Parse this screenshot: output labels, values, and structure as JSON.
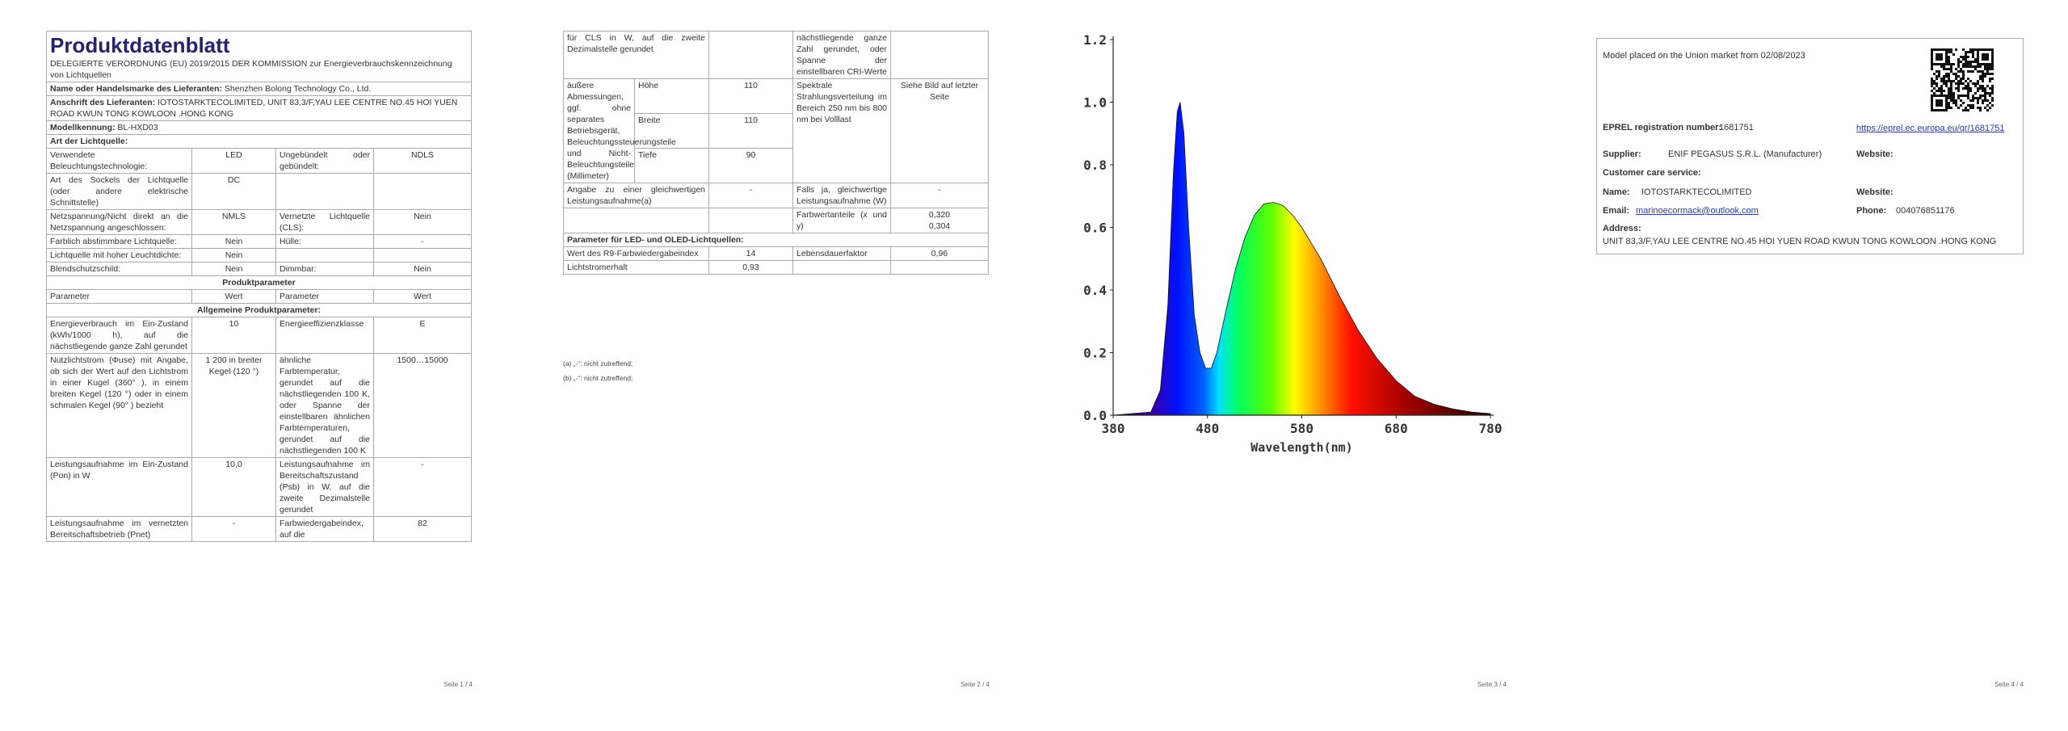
{
  "pages": [
    {
      "title": "Produktdatenblatt",
      "regulation": "DELEGIERTE VERORDNUNG (EU) 2019/2015 DER KOMMISSION zur Energieverbrauchskennzeichnung von Lichtquellen",
      "supplier_name": {
        "label": "Name oder Handelsmarke des Lieferanten:",
        "value": "Shenzhen Bolong Technology Co., Ltd."
      },
      "supplier_address": {
        "label": "Anschrift des Lieferanten:",
        "value": "IOTOSTARKTECOLIMITED, UNIT 83,3/F,YAU LEE CENTRE NO.45 HOI YUEN ROAD KWUN TONG KOWLOON .HONG KONG"
      },
      "model": {
        "label": "Modellkennung:",
        "value": "BL-HXD03"
      },
      "light_source_heading": "Art der Lichtquelle:",
      "light_source_rows": [
        [
          "Verwendete Beleuchtungstechnologie:",
          "LED",
          "Ungebündelt oder gebündelt:",
          "NDLS"
        ],
        [
          "Art des Sockels der Lichtquelle (oder andere elektrische Schnittstelle)",
          "DC",
          null,
          null
        ],
        [
          "Netzspannung/Nicht direkt an die Netzspannung angeschlossen:",
          "NMLS",
          "Vernetzte Lichtquelle (CLS):",
          "Nein"
        ],
        [
          "Farblich abstimmbare Lichtquelle:",
          "Nein",
          "Hülle:",
          "-"
        ],
        [
          "Lichtquelle mit hoher Leuchtdichte:",
          "Nein",
          null,
          null
        ],
        [
          "Blendschutzschild:",
          "Nein",
          "Dimmbar:",
          "Nein"
        ]
      ],
      "product_parameters_heading": "Produktparameter",
      "parameter_header": [
        "Parameter",
        "Wert",
        "Parameter",
        "Wert"
      ],
      "general_parameters_heading": "Allgemeine Produktparameter:",
      "general_rows": [
        [
          "Energieverbrauch im Ein-Zustand (kWh/1000 h), auf die nächstliegende ganze Zahl gerundet",
          "10",
          "Energieeffizienzklasse",
          "E"
        ],
        [
          "Nutzlichtstrom (Φuse) mit Angabe, ob sich der Wert auf den Lichtstrom in einer Kugel (360° ), in einem breiten Kegel (120 °) oder in einem schmalen Kegel (90° ) bezieht",
          "1 200 in breiter Kegel (120 °)",
          "ähnliche Farbtemperatur, gerundet auf die nächstliegenden 100 K, oder Spanne der einstellbaren ähnlichen Farbtemperaturen, gerundet auf die nächstliegenden 100 K",
          "1500…15000"
        ],
        [
          "Leistungsaufnahme im Ein-Zustand (Pon) in W",
          "10,0",
          "Leistungsaufnahme im Bereitschaftszustand (Psb) in W, auf die zweite Dezimalstelle gerundet",
          "-"
        ],
        [
          "Leistungsaufnahme im vernetzten Bereitschaftsbetrieb (Pnet)",
          "-",
          "Farbwiedergabeindex, auf die",
          "82"
        ]
      ],
      "footer": "Seite 1 / 4"
    },
    {
      "continued_row": [
        "für CLS in W, auf die zweite Dezimalstelle gerundet",
        null,
        "nächstliegende ganze Zahl gerundet, oder Spanne der einstellbaren CRI-Werte",
        null
      ],
      "dimensions": {
        "label": "äußere Abmessungen, ggf. ohne separates Betriebsgerät, Beleuchtungssteuerungsteile und Nicht-Beleuchtungsteile (Millimeter)",
        "items": [
          [
            "Höhe",
            "110"
          ],
          [
            "Breite",
            "110"
          ],
          [
            "Tiefe",
            "90"
          ]
        ],
        "spectral_label": "Spektrale Strahlungsverteilung im Bereich 250 nm bis 800 nm bei Volllast",
        "spectral_value": "Siehe Bild auf letzter Seite"
      },
      "rows": [
        [
          "Angabe zu einer gleichwertigen Leistungsaufnahme(a)",
          "-",
          "Falls ja, gleichwertige Leistungsaufnahme (W)",
          "-"
        ],
        [
          null,
          null,
          "Farbwertanteile (x und y)",
          "0,320\n0,304"
        ]
      ],
      "led_heading": "Parameter für LED- und OLED-Lichtquellen:",
      "led_rows": [
        [
          "Wert des R9-Farbwiedergabeindex",
          "14",
          "Lebensdauerfaktor",
          "0,96"
        ],
        [
          "Lichtstromerhalt",
          "0,93",
          null,
          null
        ]
      ],
      "footnotes": [
        "(a) „-“: nicht zutreffend;",
        "(b) „-“: nicht zutreffend;"
      ],
      "footer": "Seite 2 / 4"
    },
    {
      "spectrum": {
        "type": "area",
        "xlabel": "Wavelength(nm)",
        "xlim": [
          380,
          780
        ],
        "ylim": [
          0,
          1.2
        ],
        "xticks": [
          380,
          480,
          580,
          680,
          780
        ],
        "yticks": [
          {
            "value": 0,
            "label": "0.0"
          },
          0.2,
          0.4,
          0.6,
          0.8,
          {
            "value": 1,
            "label": "1.0"
          },
          1.2
        ],
        "x": [
          380,
          420,
          430,
          438,
          444,
          448,
          451,
          455,
          460,
          466,
          472,
          478,
          484,
          490,
          500,
          510,
          520,
          530,
          540,
          550,
          560,
          570,
          580,
          590,
          600,
          620,
          640,
          660,
          680,
          700,
          720,
          740,
          760,
          780
        ],
        "values": [
          0,
          0.01,
          0.08,
          0.35,
          0.78,
          0.97,
          1.0,
          0.9,
          0.6,
          0.32,
          0.2,
          0.15,
          0.15,
          0.2,
          0.34,
          0.47,
          0.57,
          0.64,
          0.675,
          0.68,
          0.67,
          0.64,
          0.6,
          0.55,
          0.5,
          0.38,
          0.27,
          0.18,
          0.11,
          0.06,
          0.035,
          0.02,
          0.01,
          0.005
        ]
      },
      "footer": "Seite 3 / 4"
    },
    {
      "market": "Model placed on the Union market from 02/08/2023",
      "eprel": {
        "label": "EPREL registration number:",
        "value": "1681751",
        "link": "https://eprel.ec.europa.eu/qr/1681751"
      },
      "supplier": {
        "label": "Supplier:",
        "value": "ENIF PEGASUS S.R.L. (Manufacturer)",
        "website_label": "Website:"
      },
      "customer_care": "Customer care service:",
      "name": {
        "label": "Name:",
        "value": "IOTOSTARKTECOLIMITED",
        "website_label": "Website:"
      },
      "email": {
        "label": "Email:",
        "value": "marinoecormack@outlook.com",
        "phone_label": "Phone:",
        "phone": "004076851176"
      },
      "address": {
        "label": "Address:",
        "value": "UNIT 83,3/F,YAU LEE CENTRE NO.45 HOI YUEN ROAD KWUN TONG KOWLOON .HONG KONG"
      },
      "footer": "Seite 4 / 4"
    }
  ]
}
